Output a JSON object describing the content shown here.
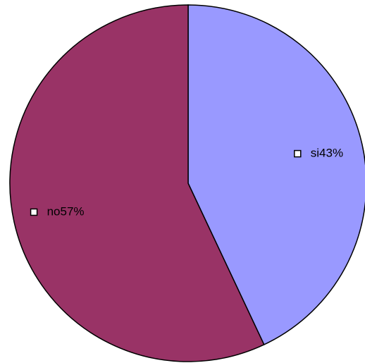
{
  "chart_data": {
    "type": "pie",
    "categories": [
      "si",
      "no"
    ],
    "values": [
      43,
      57
    ],
    "value_labels": [
      "43%",
      "57%"
    ],
    "colors": [
      "#9999ff",
      "#993366"
    ]
  }
}
